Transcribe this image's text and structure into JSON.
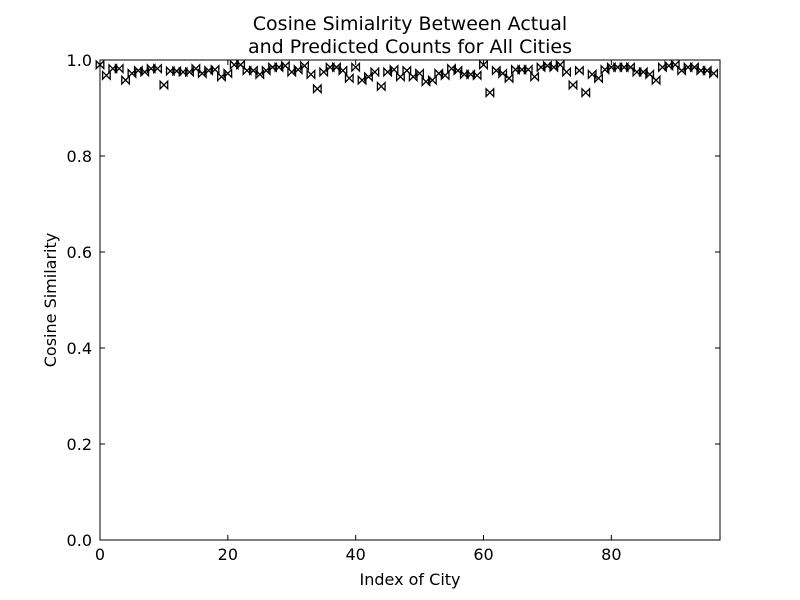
{
  "chart_data": {
    "type": "scatter",
    "title": [
      "Cosine Simialrity Between Actual",
      "and Predicted Counts for All Cities"
    ],
    "xlabel": "Index of City",
    "ylabel": "Cosine Similarity",
    "xlim": [
      0,
      97
    ],
    "ylim": [
      0.0,
      1.0
    ],
    "xticks": [
      0,
      20,
      40,
      60,
      80
    ],
    "xtick_labels": [
      "0",
      "20",
      "40",
      "60",
      "80"
    ],
    "yticks": [
      0.0,
      0.2,
      0.4,
      0.6,
      0.8,
      1.0
    ],
    "ytick_labels": [
      "0.0",
      "0.2",
      "0.4",
      "0.6",
      "0.8",
      "1.0"
    ],
    "grid": false,
    "marker": "bowtie",
    "marker_color": "#000000",
    "x": [
      0,
      1,
      2,
      3,
      4,
      5,
      6,
      7,
      8,
      9,
      10,
      11,
      12,
      13,
      14,
      15,
      16,
      17,
      18,
      19,
      20,
      21,
      22,
      23,
      24,
      25,
      26,
      27,
      28,
      29,
      30,
      31,
      32,
      33,
      34,
      35,
      36,
      37,
      38,
      39,
      40,
      41,
      42,
      43,
      44,
      45,
      46,
      47,
      48,
      49,
      50,
      51,
      52,
      53,
      54,
      55,
      56,
      57,
      58,
      59,
      60,
      61,
      62,
      63,
      64,
      65,
      66,
      67,
      68,
      69,
      70,
      71,
      72,
      73,
      74,
      75,
      76,
      77,
      78,
      79,
      80,
      81,
      82,
      83,
      84,
      85,
      86,
      87,
      88,
      89,
      90,
      91,
      92,
      93,
      94,
      95,
      96
    ],
    "y": [
      0.99,
      0.968,
      0.982,
      0.982,
      0.958,
      0.972,
      0.978,
      0.975,
      0.982,
      0.982,
      0.948,
      0.977,
      0.977,
      0.975,
      0.975,
      0.982,
      0.972,
      0.978,
      0.98,
      0.965,
      0.972,
      0.99,
      0.99,
      0.978,
      0.978,
      0.97,
      0.978,
      0.985,
      0.985,
      0.988,
      0.975,
      0.98,
      0.988,
      0.97,
      0.94,
      0.975,
      0.985,
      0.985,
      0.978,
      0.962,
      0.985,
      0.958,
      0.965,
      0.975,
      0.945,
      0.975,
      0.98,
      0.965,
      0.978,
      0.965,
      0.972,
      0.955,
      0.958,
      0.972,
      0.968,
      0.982,
      0.978,
      0.97,
      0.97,
      0.968,
      0.99,
      0.932,
      0.978,
      0.972,
      0.962,
      0.98,
      0.98,
      0.98,
      0.965,
      0.985,
      0.988,
      0.985,
      0.99,
      0.975,
      0.948,
      0.978,
      0.932,
      0.97,
      0.962,
      0.98,
      0.985,
      0.985,
      0.985,
      0.985,
      0.975,
      0.975,
      0.97,
      0.958,
      0.985,
      0.988,
      0.99,
      0.978,
      0.985,
      0.985,
      0.978,
      0.978,
      0.972
    ]
  }
}
